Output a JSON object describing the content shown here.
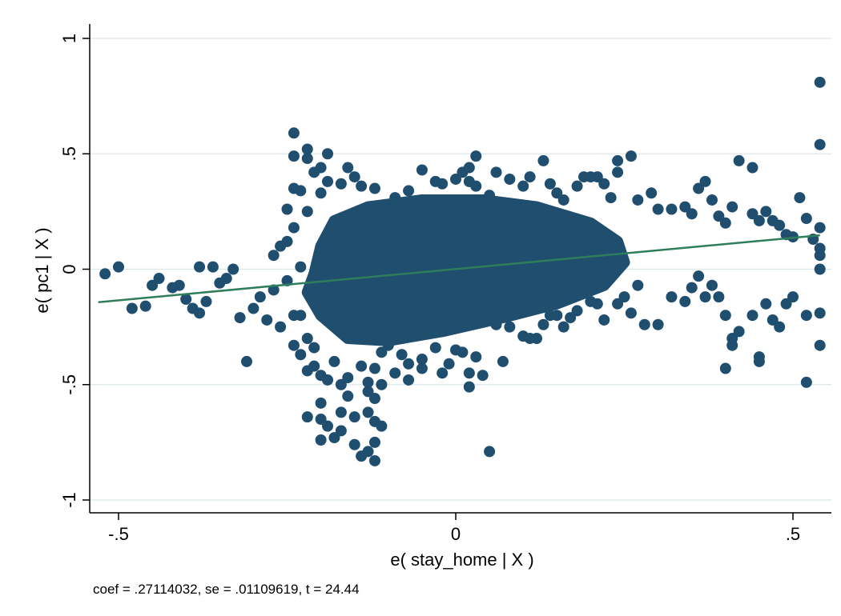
{
  "chart_data": {
    "type": "scatter",
    "title": "",
    "xlabel": "e( stay_home | X )",
    "ylabel": "e( pc1 | X )",
    "note": "coef = .27114032, se = .01109619, t = 24.44",
    "xlim": [
      -0.55,
      0.55
    ],
    "ylim": [
      -1.03,
      1.03
    ],
    "x_ticks": [
      -0.5,
      0,
      0.5
    ],
    "x_tick_labels": [
      "-.5",
      "0",
      ".5"
    ],
    "y_ticks": [
      -1,
      -0.5,
      0,
      0.5,
      1
    ],
    "y_tick_labels": [
      "-1",
      "-.5",
      "0",
      ".5",
      "1"
    ],
    "grid": "horizontal",
    "legend": "none",
    "colors": {
      "points": "#1f4e6e",
      "fit_line": "#2e7d5b",
      "grid": "#dce7ea"
    },
    "fit_line": {
      "coef": 0.27114032,
      "x": [
        -0.53,
        0.54
      ],
      "y": [
        -0.143,
        0.147
      ]
    },
    "cloud": {
      "description": "dense core of overlapping points",
      "polygon": [
        [
          -0.21,
          -0.02
        ],
        [
          -0.2,
          0.1
        ],
        [
          -0.18,
          0.21
        ],
        [
          -0.13,
          0.27
        ],
        [
          -0.05,
          0.3
        ],
        [
          0.04,
          0.3
        ],
        [
          0.12,
          0.27
        ],
        [
          0.2,
          0.2
        ],
        [
          0.24,
          0.12
        ],
        [
          0.25,
          0.03
        ],
        [
          0.22,
          -0.07
        ],
        [
          0.15,
          -0.15
        ],
        [
          0.07,
          -0.21
        ],
        [
          -0.02,
          -0.27
        ],
        [
          -0.1,
          -0.31
        ],
        [
          -0.16,
          -0.3
        ],
        [
          -0.2,
          -0.2
        ],
        [
          -0.22,
          -0.1
        ]
      ]
    },
    "points": [
      [
        -0.52,
        -0.02
      ],
      [
        -0.5,
        0.01
      ],
      [
        -0.48,
        -0.17
      ],
      [
        -0.46,
        -0.16
      ],
      [
        -0.45,
        -0.07
      ],
      [
        -0.44,
        -0.04
      ],
      [
        -0.42,
        -0.08
      ],
      [
        -0.41,
        -0.07
      ],
      [
        -0.4,
        -0.13
      ],
      [
        -0.39,
        -0.17
      ],
      [
        -0.38,
        -0.19
      ],
      [
        -0.37,
        -0.14
      ],
      [
        -0.38,
        0.01
      ],
      [
        -0.36,
        0.01
      ],
      [
        -0.35,
        -0.06
      ],
      [
        -0.34,
        -0.04
      ],
      [
        -0.33,
        0.0
      ],
      [
        -0.32,
        -0.21
      ],
      [
        -0.31,
        -0.4
      ],
      [
        -0.3,
        -0.17
      ],
      [
        -0.29,
        -0.12
      ],
      [
        -0.28,
        -0.22
      ],
      [
        -0.27,
        -0.09
      ],
      [
        -0.26,
        -0.25
      ],
      [
        -0.25,
        -0.05
      ],
      [
        -0.24,
        -0.2
      ],
      [
        -0.23,
        0.01
      ],
      [
        -0.27,
        0.06
      ],
      [
        -0.26,
        0.1
      ],
      [
        -0.25,
        0.12
      ],
      [
        -0.24,
        0.18
      ],
      [
        -0.22,
        0.25
      ],
      [
        -0.25,
        0.26
      ],
      [
        -0.24,
        0.35
      ],
      [
        -0.23,
        0.34
      ],
      [
        -0.24,
        0.59
      ],
      [
        -0.24,
        0.49
      ],
      [
        -0.22,
        0.52
      ],
      [
        -0.22,
        0.48
      ],
      [
        -0.21,
        0.42
      ],
      [
        -0.2,
        0.44
      ],
      [
        -0.2,
        0.33
      ],
      [
        -0.19,
        0.5
      ],
      [
        -0.19,
        0.38
      ],
      [
        -0.17,
        0.37
      ],
      [
        -0.16,
        0.44
      ],
      [
        -0.15,
        0.4
      ],
      [
        -0.14,
        0.36
      ],
      [
        -0.12,
        0.35
      ],
      [
        -0.09,
        0.31
      ],
      [
        -0.07,
        0.34
      ],
      [
        -0.05,
        0.43
      ],
      [
        -0.03,
        0.38
      ],
      [
        -0.02,
        0.37
      ],
      [
        0.0,
        0.39
      ],
      [
        0.01,
        0.42
      ],
      [
        0.02,
        0.44
      ],
      [
        0.03,
        0.49
      ],
      [
        0.02,
        0.38
      ],
      [
        0.03,
        0.36
      ],
      [
        0.05,
        0.32
      ],
      [
        0.06,
        0.42
      ],
      [
        0.08,
        0.39
      ],
      [
        0.1,
        0.36
      ],
      [
        0.11,
        0.4
      ],
      [
        0.13,
        0.47
      ],
      [
        0.14,
        0.37
      ],
      [
        0.15,
        0.33
      ],
      [
        0.16,
        0.3
      ],
      [
        0.18,
        0.36
      ],
      [
        0.19,
        0.4
      ],
      [
        0.2,
        0.4
      ],
      [
        0.21,
        0.4
      ],
      [
        0.22,
        0.37
      ],
      [
        0.23,
        0.31
      ],
      [
        0.24,
        0.47
      ],
      [
        0.24,
        0.42
      ],
      [
        0.26,
        0.49
      ],
      [
        0.27,
        0.3
      ],
      [
        0.29,
        0.33
      ],
      [
        0.3,
        0.26
      ],
      [
        0.32,
        0.26
      ],
      [
        0.34,
        0.27
      ],
      [
        0.35,
        0.24
      ],
      [
        0.36,
        0.35
      ],
      [
        0.37,
        0.38
      ],
      [
        0.38,
        0.3
      ],
      [
        0.39,
        0.23
      ],
      [
        0.4,
        0.2
      ],
      [
        0.41,
        0.27
      ],
      [
        0.42,
        0.47
      ],
      [
        0.44,
        0.44
      ],
      [
        0.44,
        0.24
      ],
      [
        0.45,
        0.21
      ],
      [
        0.46,
        0.25
      ],
      [
        0.47,
        0.21
      ],
      [
        0.48,
        0.19
      ],
      [
        0.49,
        0.15
      ],
      [
        0.5,
        0.14
      ],
      [
        0.51,
        0.31
      ],
      [
        0.52,
        0.22
      ],
      [
        0.53,
        0.13
      ],
      [
        0.54,
        0.81
      ],
      [
        0.54,
        0.54
      ],
      [
        0.54,
        0.18
      ],
      [
        0.54,
        0.09
      ],
      [
        0.54,
        0.06
      ],
      [
        0.54,
        0.0
      ],
      [
        0.54,
        -0.19
      ],
      [
        0.54,
        -0.33
      ],
      [
        0.52,
        -0.2
      ],
      [
        0.52,
        -0.49
      ],
      [
        0.5,
        -0.12
      ],
      [
        0.49,
        -0.15
      ],
      [
        0.48,
        -0.25
      ],
      [
        0.47,
        -0.22
      ],
      [
        0.46,
        -0.15
      ],
      [
        0.45,
        -0.38
      ],
      [
        0.45,
        -0.4
      ],
      [
        0.44,
        -0.2
      ],
      [
        0.42,
        -0.27
      ],
      [
        0.41,
        -0.33
      ],
      [
        0.41,
        -0.3
      ],
      [
        0.4,
        -0.2
      ],
      [
        0.4,
        -0.43
      ],
      [
        0.39,
        -0.12
      ],
      [
        0.38,
        -0.07
      ],
      [
        0.37,
        -0.12
      ],
      [
        0.36,
        -0.03
      ],
      [
        0.35,
        -0.08
      ],
      [
        0.34,
        -0.14
      ],
      [
        0.32,
        -0.12
      ],
      [
        0.3,
        -0.24
      ],
      [
        0.28,
        -0.24
      ],
      [
        0.27,
        -0.07
      ],
      [
        0.26,
        -0.19
      ],
      [
        0.25,
        -0.12
      ],
      [
        0.24,
        -0.15
      ],
      [
        0.22,
        -0.22
      ],
      [
        0.21,
        -0.15
      ],
      [
        0.2,
        -0.14
      ],
      [
        0.18,
        -0.18
      ],
      [
        0.17,
        -0.21
      ],
      [
        0.16,
        -0.25
      ],
      [
        0.14,
        -0.2
      ],
      [
        0.12,
        -0.3
      ],
      [
        0.1,
        -0.29
      ],
      [
        0.08,
        -0.25
      ],
      [
        0.06,
        -0.24
      ],
      [
        0.05,
        -0.79
      ],
      [
        0.07,
        -0.4
      ],
      [
        0.04,
        -0.46
      ],
      [
        0.02,
        -0.51
      ],
      [
        0.02,
        -0.45
      ],
      [
        0.01,
        -0.36
      ],
      [
        -0.01,
        -0.41
      ],
      [
        -0.02,
        -0.45
      ],
      [
        -0.03,
        -0.34
      ],
      [
        -0.05,
        -0.39
      ],
      [
        -0.07,
        -0.41
      ],
      [
        -0.08,
        -0.37
      ],
      [
        -0.1,
        -0.33
      ],
      [
        -0.11,
        -0.36
      ],
      [
        -0.11,
        -0.5
      ],
      [
        -0.12,
        -0.43
      ],
      [
        -0.12,
        -0.56
      ],
      [
        -0.13,
        -0.62
      ],
      [
        -0.12,
        -0.66
      ],
      [
        -0.11,
        -0.68
      ],
      [
        -0.12,
        -0.75
      ],
      [
        -0.13,
        -0.79
      ],
      [
        -0.12,
        -0.83
      ],
      [
        -0.14,
        -0.81
      ],
      [
        -0.15,
        -0.76
      ],
      [
        -0.15,
        -0.64
      ],
      [
        -0.16,
        -0.55
      ],
      [
        -0.17,
        -0.62
      ],
      [
        -0.17,
        -0.7
      ],
      [
        -0.18,
        -0.73
      ],
      [
        -0.19,
        -0.68
      ],
      [
        -0.2,
        -0.74
      ],
      [
        -0.2,
        -0.65
      ],
      [
        -0.2,
        -0.58
      ],
      [
        -0.2,
        -0.46
      ],
      [
        -0.22,
        -0.64
      ],
      [
        -0.21,
        -0.42
      ],
      [
        -0.22,
        -0.44
      ],
      [
        -0.23,
        -0.37
      ],
      [
        -0.24,
        -0.33
      ],
      [
        -0.22,
        -0.3
      ],
      [
        -0.23,
        -0.2
      ],
      [
        -0.21,
        -0.34
      ],
      [
        -0.19,
        -0.48
      ],
      [
        -0.18,
        -0.4
      ],
      [
        -0.17,
        -0.5
      ],
      [
        -0.16,
        -0.47
      ],
      [
        -0.14,
        -0.42
      ],
      [
        -0.13,
        -0.53
      ],
      [
        -0.13,
        -0.49
      ],
      [
        -0.09,
        -0.45
      ],
      [
        -0.07,
        -0.48
      ],
      [
        -0.05,
        -0.43
      ],
      [
        0.0,
        -0.35
      ],
      [
        0.03,
        -0.38
      ],
      [
        0.11,
        -0.3
      ],
      [
        0.13,
        -0.24
      ],
      [
        0.15,
        -0.2
      ]
    ]
  }
}
